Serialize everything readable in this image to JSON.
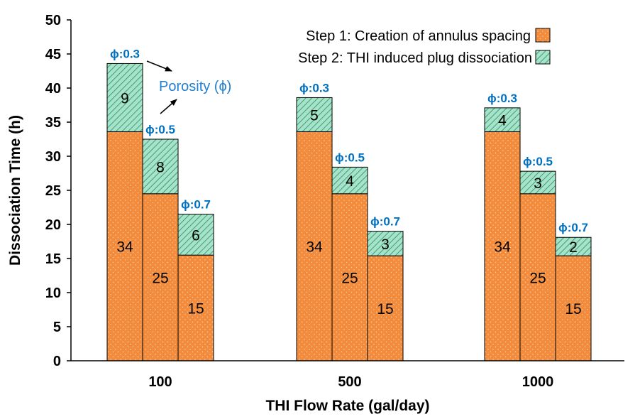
{
  "colors": {
    "step1": "#F28C3C",
    "step2": "#9ADFC4",
    "phi": "#0070C0",
    "porosity": "#1F7FD0",
    "axis": "#000000"
  },
  "chart_data": {
    "type": "bar",
    "stacked": true,
    "title": "",
    "xlabel": "THI Flow Rate (gal/day)",
    "ylabel": "Dissociation Time (h)",
    "ylim": [
      0,
      50
    ],
    "yticks": [
      "0",
      "5",
      "10",
      "15",
      "20",
      "25",
      "30",
      "35",
      "40",
      "45",
      "50"
    ],
    "categories": [
      "100",
      "500",
      "1000"
    ],
    "porosity_labels": [
      "ϕ:0.3",
      "ϕ:0.5",
      "ϕ:0.7"
    ],
    "series": [
      {
        "name": "Step 1: Creation of annulus spacing",
        "values": [
          [
            34,
            25,
            15
          ],
          [
            34,
            25,
            15
          ],
          [
            34,
            25,
            15
          ]
        ]
      },
      {
        "name": "Step 2: THI induced plug dissociation",
        "values": [
          [
            9,
            8,
            6
          ],
          [
            5,
            4,
            3
          ],
          [
            4,
            3,
            2
          ]
        ]
      }
    ],
    "step1_display": [
      [
        33.6,
        24.5,
        15.5
      ],
      [
        33.6,
        24.5,
        15.4
      ],
      [
        33.6,
        24.5,
        15.4
      ]
    ],
    "totals": [
      [
        43.6,
        32.5,
        21.5
      ],
      [
        38.6,
        28.4,
        19.0
      ],
      [
        37.1,
        27.8,
        18.1
      ]
    ],
    "annotation": "Porosity (ϕ)",
    "legend_position": "top-right"
  }
}
